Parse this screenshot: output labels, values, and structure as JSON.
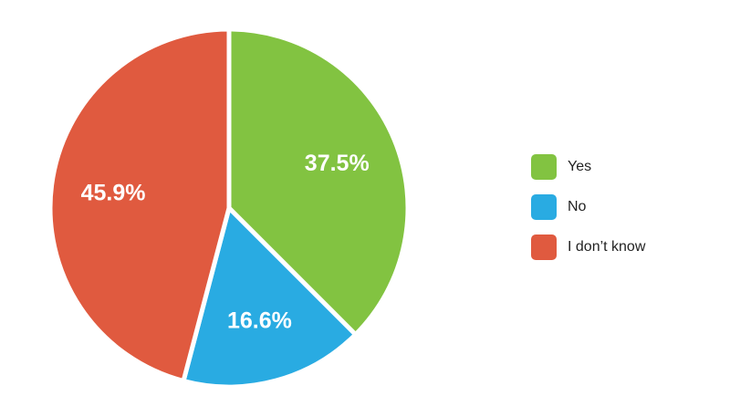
{
  "chart_data": {
    "type": "pie",
    "categories": [
      "Yes",
      "No",
      "I don’t know"
    ],
    "values": [
      37.5,
      16.6,
      45.9
    ],
    "value_labels": [
      "37.5%",
      "16.6%",
      "45.9%"
    ],
    "colors": [
      "#82c341",
      "#29abe2",
      "#e05a3f"
    ],
    "start_angle_deg": 0,
    "direction": "clockwise",
    "legend_position": "right"
  }
}
